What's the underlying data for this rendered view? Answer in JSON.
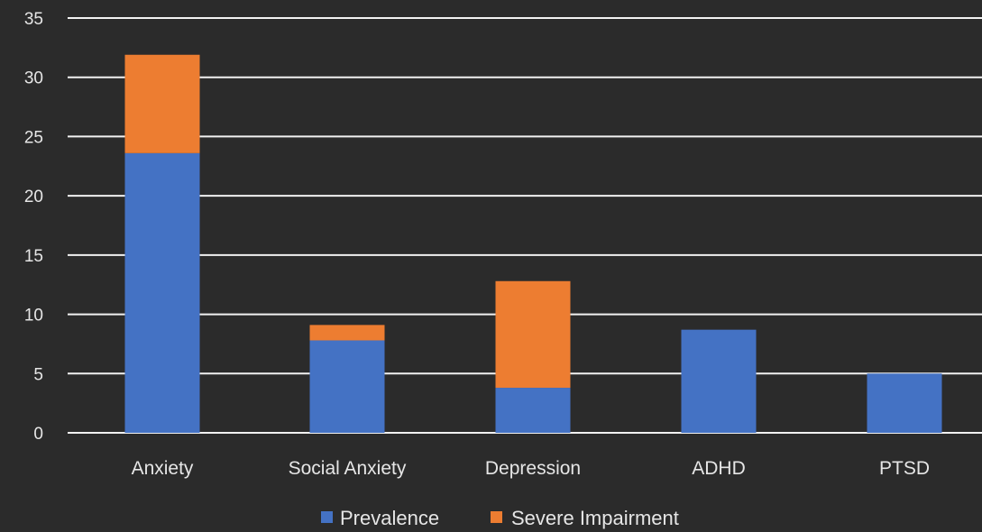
{
  "chart_data": {
    "type": "bar",
    "stacked": true,
    "categories": [
      "Anxiety",
      "Social Anxiety",
      "Depression",
      "ADHD",
      "PTSD"
    ],
    "series": [
      {
        "name": "Prevalence",
        "values": [
          23.6,
          7.8,
          3.8,
          8.7,
          5.0
        ]
      },
      {
        "name": "Severe Impairment",
        "values": [
          8.3,
          1.3,
          9.0,
          0,
          0
        ]
      }
    ],
    "title": "",
    "xlabel": "",
    "ylabel": "",
    "ylim": [
      0,
      35
    ],
    "yticks": [
      "0",
      "5",
      "10",
      "15",
      "20",
      "25",
      "30",
      "35"
    ],
    "grid": true,
    "legend_position": "bottom"
  },
  "colors": {
    "background": "#2b2b2b",
    "prevalence": "#4472c4",
    "severe_impairment": "#ed7d31",
    "text": "#e6e6e6",
    "grid": "#f2f2f2"
  }
}
